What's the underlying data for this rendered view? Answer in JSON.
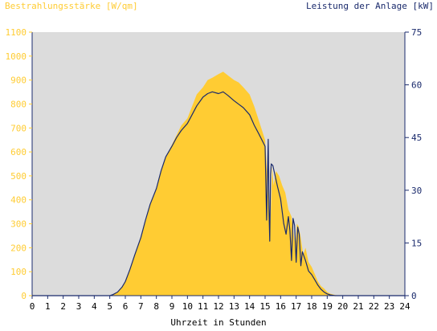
{
  "chart_data": {
    "type": "area",
    "ylabel_left": "Bestrahlungsstärke [W/qm]",
    "ylabel_right": "Leistung der Anlage [kW]",
    "xlabel": "Uhrzeit in Stunden",
    "xlim": [
      0,
      24
    ],
    "xticks": [
      "0",
      "1",
      "2",
      "3",
      "4",
      "5",
      "6",
      "7",
      "8",
      "9",
      "10",
      "11",
      "12",
      "13",
      "14",
      "15",
      "16",
      "17",
      "18",
      "19",
      "20",
      "21",
      "22",
      "23",
      "24"
    ],
    "ylim_left": [
      0,
      1100
    ],
    "yticks_left": [
      "0",
      "100",
      "200",
      "300",
      "400",
      "500",
      "600",
      "700",
      "800",
      "900",
      "1000",
      "1100"
    ],
    "ylim_right": [
      0,
      75
    ],
    "yticks_right": [
      "0",
      "15",
      "30",
      "45",
      "60",
      "75"
    ],
    "grid": false,
    "colors": {
      "irradiance": "#ffcc33",
      "power": "#1a2a6c",
      "plot_bg": "#dcdcdc",
      "left_axis": "#ffcc33",
      "right_axis": "#1a2a6c",
      "frame": "#1a2a6c"
    },
    "series": [
      {
        "name": "Bestrahlungsstärke",
        "axis": "left",
        "x": [
          0,
          5.0,
          5.2,
          5.5,
          5.8,
          6.0,
          6.3,
          6.6,
          7.0,
          7.3,
          7.6,
          8.0,
          8.3,
          8.6,
          9.0,
          9.3,
          9.6,
          10.0,
          10.3,
          10.6,
          11.0,
          11.3,
          11.6,
          12.0,
          12.3,
          12.6,
          13.0,
          13.3,
          13.6,
          14.0,
          14.3,
          14.6,
          15.0,
          15.2,
          15.35,
          15.45,
          15.55,
          15.7,
          15.9,
          16.1,
          16.3,
          16.5,
          16.7,
          16.85,
          16.95,
          17.05,
          17.15,
          17.3,
          17.45,
          17.6,
          17.8,
          18.0,
          18.2,
          18.4,
          18.6,
          18.8,
          19.0,
          19.2,
          19.5,
          19.8,
          20.0,
          24
        ],
        "values": [
          0,
          0,
          5,
          15,
          35,
          60,
          110,
          170,
          240,
          310,
          380,
          450,
          520,
          580,
          630,
          670,
          710,
          740,
          790,
          840,
          870,
          900,
          910,
          925,
          935,
          920,
          900,
          890,
          870,
          840,
          790,
          730,
          650,
          420,
          310,
          540,
          460,
          520,
          500,
          460,
          430,
          360,
          330,
          250,
          210,
          300,
          290,
          240,
          170,
          200,
          140,
          120,
          90,
          60,
          40,
          30,
          15,
          8,
          3,
          0,
          0,
          0
        ]
      },
      {
        "name": "Leistung der Anlage",
        "axis": "right",
        "x": [
          0,
          5.0,
          5.2,
          5.5,
          5.8,
          6.0,
          6.3,
          6.6,
          7.0,
          7.3,
          7.6,
          8.0,
          8.3,
          8.6,
          9.0,
          9.3,
          9.6,
          10.0,
          10.3,
          10.6,
          11.0,
          11.3,
          11.6,
          12.0,
          12.3,
          12.6,
          13.0,
          13.3,
          13.6,
          14.0,
          14.3,
          14.6,
          15.0,
          15.1,
          15.2,
          15.25,
          15.3,
          15.35,
          15.4,
          15.5,
          15.6,
          15.8,
          16.0,
          16.2,
          16.35,
          16.5,
          16.6,
          16.7,
          16.8,
          16.9,
          17.0,
          17.1,
          17.2,
          17.3,
          17.4,
          17.6,
          17.8,
          18.0,
          18.2,
          18.4,
          18.6,
          18.8,
          19.0,
          19.2,
          19.5,
          19.8,
          20.0,
          24
        ],
        "values": [
          0,
          0,
          0.3,
          1.0,
          2.5,
          4.0,
          7.5,
          11.5,
          16.5,
          21.5,
          26.0,
          30.5,
          35.5,
          39.5,
          42.5,
          45.0,
          47.0,
          49.0,
          51.5,
          54.0,
          56.5,
          57.5,
          58.0,
          57.5,
          58.0,
          57.0,
          55.5,
          54.5,
          53.5,
          51.5,
          48.5,
          46.0,
          42.5,
          21.5,
          44.5,
          25.0,
          15.5,
          34.5,
          37.5,
          37.0,
          35.0,
          31.0,
          27.5,
          20.5,
          17.5,
          22.5,
          18.5,
          10.0,
          22.0,
          20.0,
          9.5,
          19.5,
          17.5,
          8.5,
          12.5,
          10.0,
          7.0,
          6.0,
          4.5,
          3.0,
          1.8,
          1.0,
          0.5,
          0.2,
          0,
          0,
          0,
          0
        ]
      }
    ]
  }
}
